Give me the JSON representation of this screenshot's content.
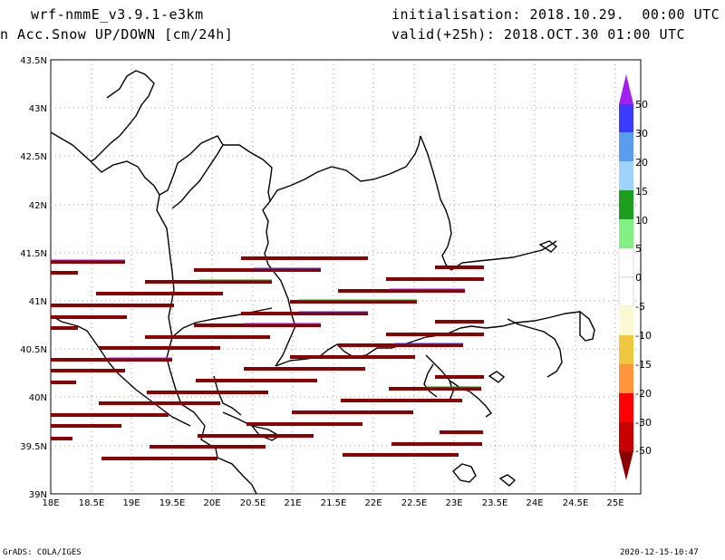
{
  "header": {
    "model": "wrf-nmmE_v3.9.1-e3km",
    "field": "n Acc.Snow UP/DOWN [cm/24h]",
    "init": "initialisation: 2018.10.29.  00:00 UTC",
    "valid": "valid(+25h): 2018.OCT.30 01:00 UTC"
  },
  "footer": {
    "left": "GrADS: COLA/IGES",
    "right": "2020-12-15-10:47"
  },
  "map": {
    "lat_labels": [
      "43.5N",
      "43N",
      "42.5N",
      "42N",
      "41.5N",
      "41N",
      "40.5N",
      "40N",
      "39.5N",
      "39N"
    ],
    "lon_labels": [
      "18E",
      "18.5E",
      "19E",
      "19.5E",
      "20E",
      "20.5E",
      "21E",
      "21.5E",
      "22E",
      "22.5E",
      "23E",
      "23.5E",
      "24E",
      "24.5E",
      "25E"
    ],
    "lat_range": [
      39,
      43.5
    ],
    "lon_range": [
      18,
      25.3
    ],
    "grid": "dotted",
    "bands_color": "#8b0000"
  },
  "colorbar": {
    "labels": [
      "50",
      "30",
      "20",
      "15",
      "10",
      "5",
      "0",
      "-5",
      "-10",
      "-15",
      "-20",
      "-30",
      "-50"
    ],
    "colors": [
      "#a020f0",
      "#3c3cff",
      "#5a9cf0",
      "#a0d2ff",
      "#1e9e1e",
      "#82f082",
      "#ffffff",
      "#ffffff",
      "#fafad2",
      "#f0c840",
      "#ff963c",
      "#ff0000",
      "#c80000",
      "#8b0000"
    ]
  }
}
